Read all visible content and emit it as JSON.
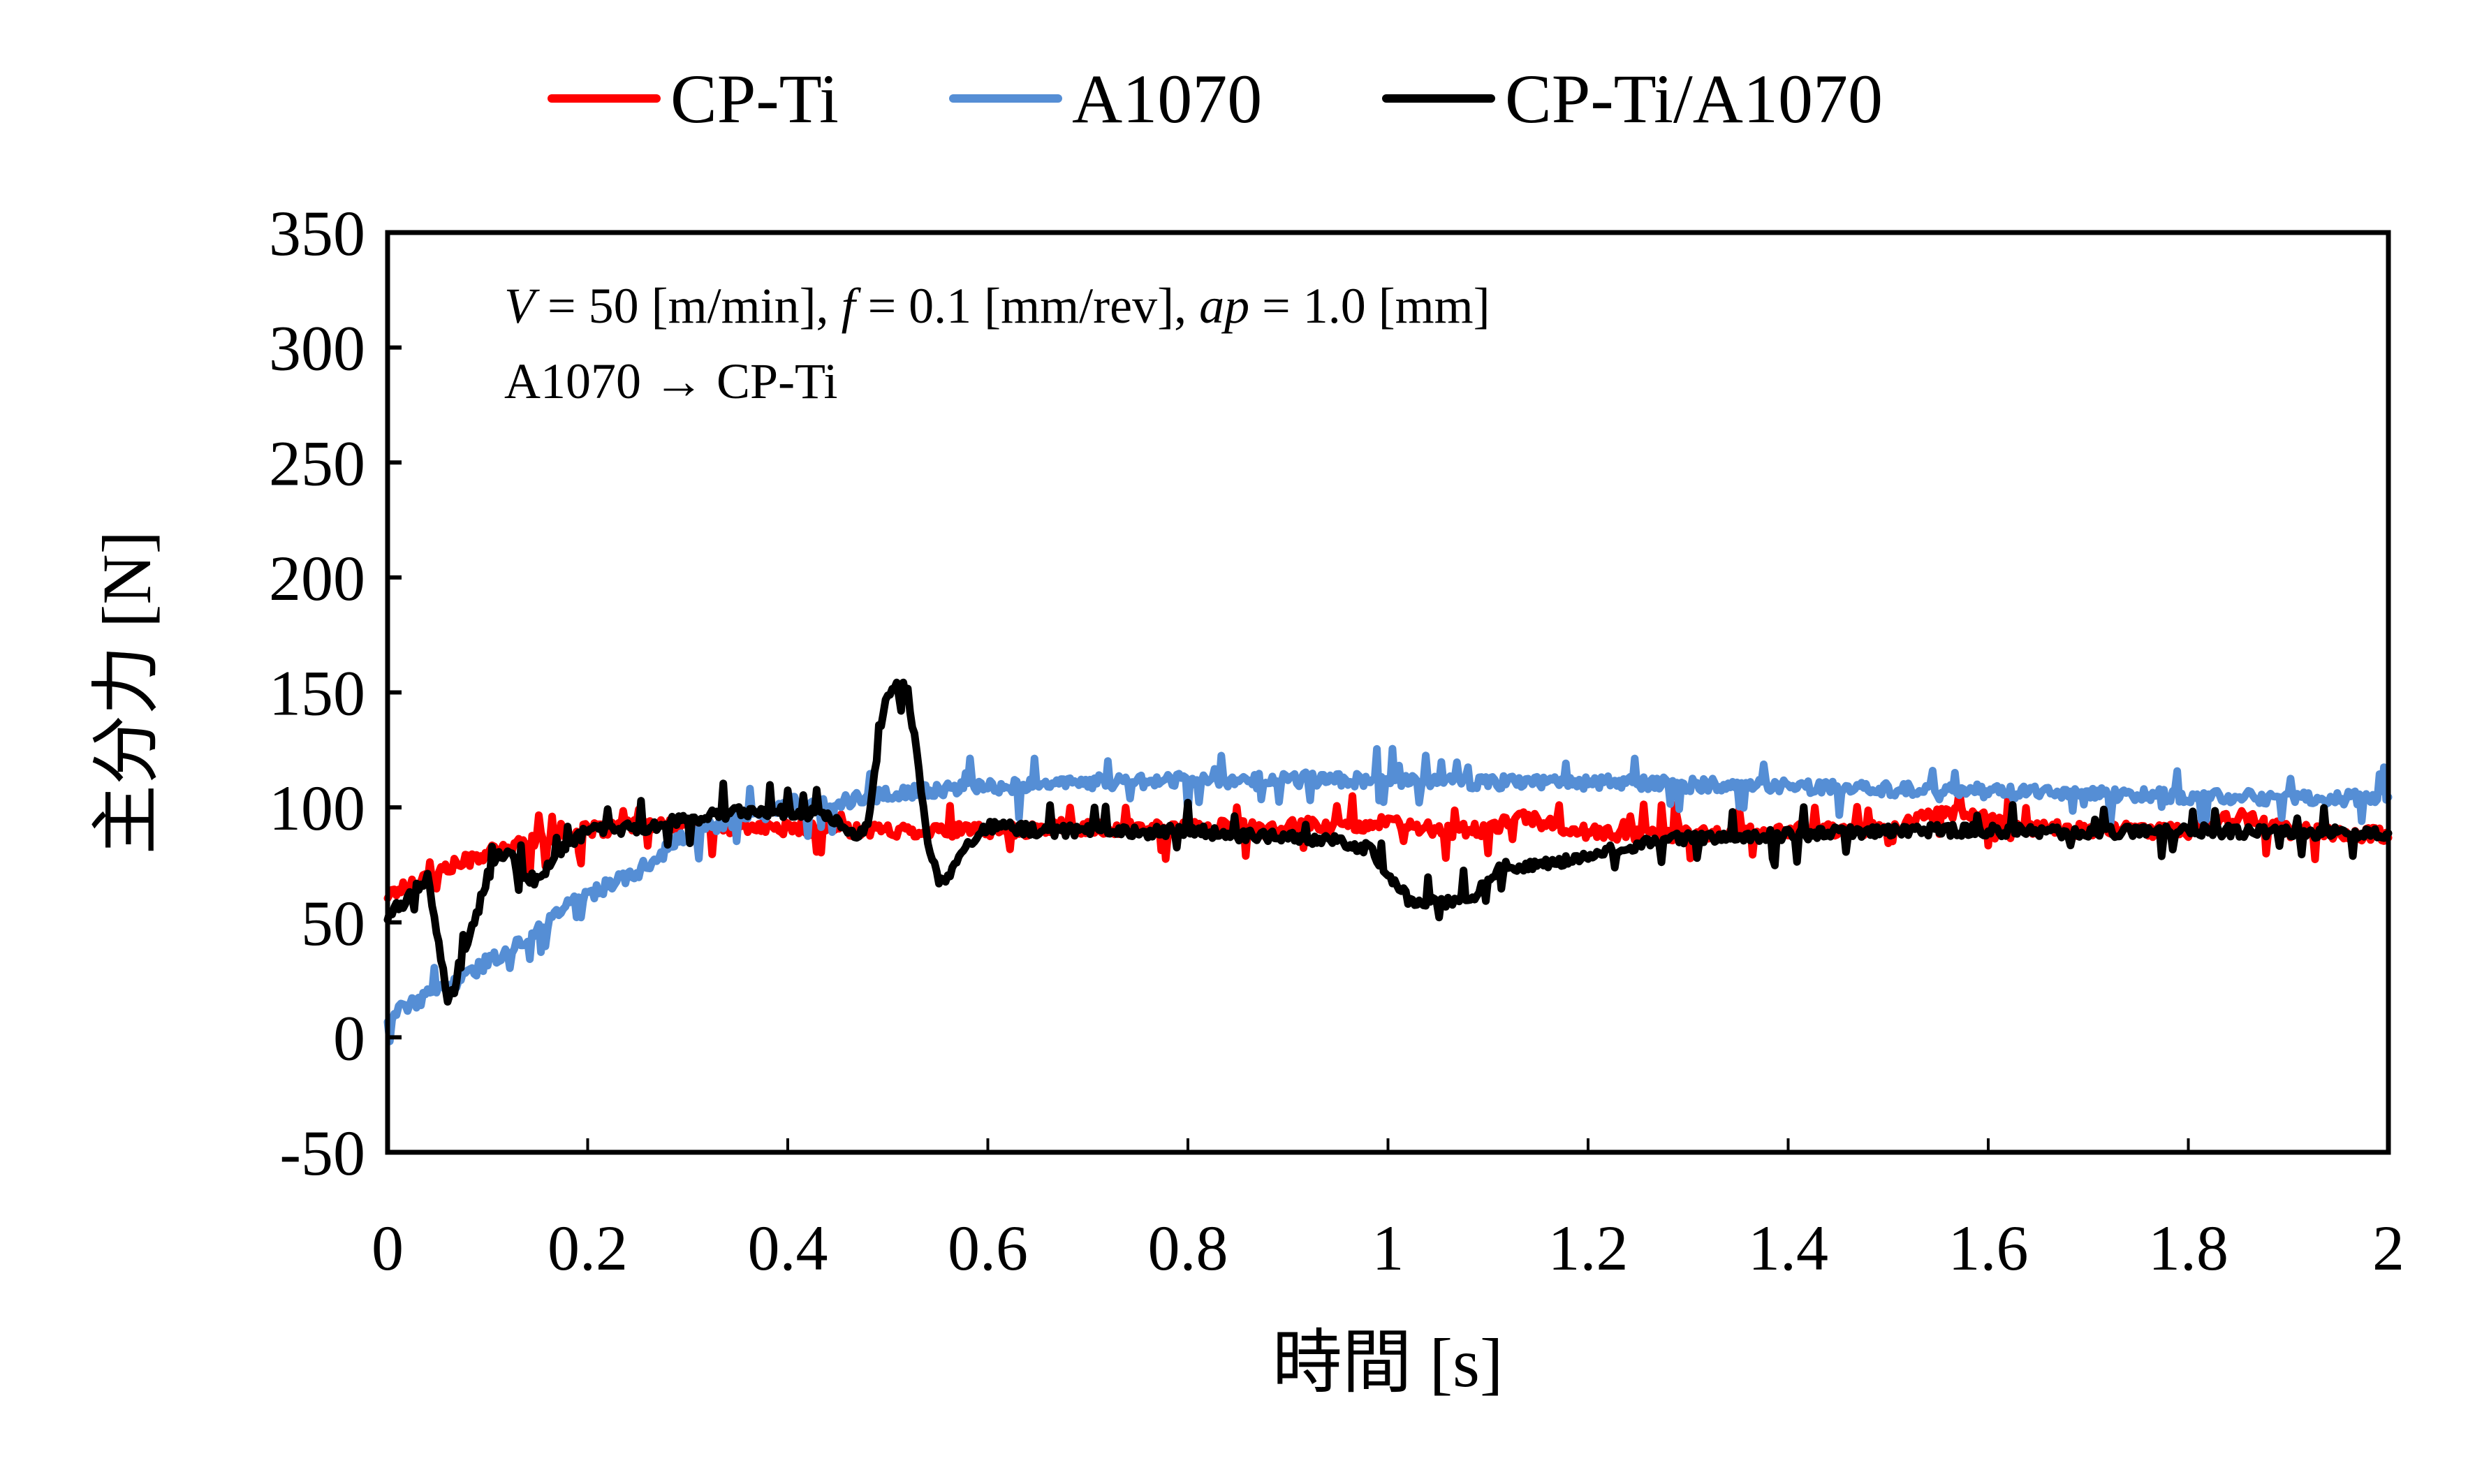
{
  "chart_data": {
    "type": "line",
    "title": "",
    "xlabel": "時間 [s]",
    "ylabel": "主分力 [N]",
    "xlim": [
      0,
      2
    ],
    "ylim": [
      -50,
      350
    ],
    "x_ticks": [
      0,
      0.2,
      0.4,
      0.6,
      0.8,
      1,
      1.2,
      1.4,
      1.6,
      1.8,
      2
    ],
    "x_tick_labels": [
      "0",
      "0.2",
      "0.4",
      "0.6",
      "0.8",
      "1",
      "1.2",
      "1.4",
      "1.6",
      "1.8",
      "2"
    ],
    "y_ticks": [
      -50,
      0,
      50,
      100,
      150,
      200,
      250,
      300,
      350
    ],
    "y_tick_labels": [
      "-50",
      "0",
      "50",
      "100",
      "150",
      "200",
      "250",
      "300",
      "350"
    ],
    "grid": false,
    "legend_position": "top-center",
    "annotations": [
      {
        "text_parts": [
          {
            "t": "V",
            "italic": true
          },
          {
            "t": " = 50 [m/min], ",
            "italic": false
          },
          {
            "t": "f",
            "italic": true
          },
          {
            "t": " = 0.1 [mm/rev], ",
            "italic": false
          },
          {
            "t": "ap",
            "italic": true
          },
          {
            "t": " = 1.0 [mm]",
            "italic": false
          }
        ],
        "position": "top-left"
      },
      {
        "text": "A1070 → CP-Ti",
        "position": "top-left"
      }
    ],
    "series": [
      {
        "name": "CP-Ti",
        "color": "#ff0000",
        "x": [
          0,
          0.02,
          0.05,
          0.08,
          0.1,
          0.15,
          0.2,
          0.25,
          0.3,
          0.4,
          0.5,
          0.6,
          0.7,
          0.8,
          0.9,
          1.0,
          1.05,
          1.1,
          1.13,
          1.17,
          1.2,
          1.3,
          1.4,
          1.5,
          1.55,
          1.58,
          1.62,
          1.7,
          1.8,
          1.85,
          1.9,
          2.0
        ],
        "y": [
          62,
          66,
          72,
          77,
          80,
          86,
          90,
          92,
          92,
          91,
          90,
          90,
          91,
          91,
          92,
          93,
          90,
          90,
          96,
          92,
          89,
          88,
          90,
          91,
          98,
          98,
          92,
          90,
          90,
          96,
          90,
          88
        ]
      },
      {
        "name": "A1070",
        "color": "#558ed5",
        "x": [
          0,
          0.02,
          0.05,
          0.08,
          0.1,
          0.13,
          0.15,
          0.18,
          0.2,
          0.22,
          0.25,
          0.28,
          0.3,
          0.35,
          0.4,
          0.45,
          0.5,
          0.6,
          0.7,
          0.8,
          0.9,
          1.0,
          1.1,
          1.2,
          1.3,
          1.4,
          1.5,
          1.6,
          1.7,
          1.8,
          1.9,
          2.0
        ],
        "y": [
          8,
          14,
          20,
          27,
          33,
          40,
          46,
          58,
          62,
          66,
          72,
          82,
          88,
          95,
          100,
          102,
          106,
          109,
          111,
          112,
          112,
          112,
          111,
          111,
          110,
          109,
          108,
          107,
          106,
          105,
          104,
          104
        ]
      },
      {
        "name": "CP-Ti/A1070",
        "color": "#000000",
        "x": [
          0,
          0.01,
          0.02,
          0.03,
          0.04,
          0.05,
          0.06,
          0.07,
          0.08,
          0.09,
          0.1,
          0.11,
          0.12,
          0.13,
          0.15,
          0.17,
          0.2,
          0.25,
          0.3,
          0.35,
          0.4,
          0.44,
          0.47,
          0.48,
          0.49,
          0.5,
          0.51,
          0.52,
          0.53,
          0.54,
          0.55,
          0.56,
          0.58,
          0.6,
          0.65,
          0.7,
          0.75,
          0.8,
          0.85,
          0.9,
          0.95,
          0.98,
          1.0,
          1.02,
          1.04,
          1.07,
          1.09,
          1.1,
          1.12,
          1.15,
          1.2,
          1.25,
          1.3,
          1.4,
          1.5,
          1.6,
          1.7,
          1.8,
          1.9,
          2.0
        ],
        "y": [
          52,
          57,
          60,
          66,
          70,
          45,
          14,
          25,
          40,
          55,
          70,
          78,
          82,
          72,
          68,
          80,
          90,
          91,
          95,
          98,
          98,
          97,
          88,
          92,
          125,
          150,
          155,
          150,
          120,
          85,
          68,
          70,
          85,
          92,
          90,
          90,
          89,
          90,
          88,
          87,
          85,
          82,
          72,
          60,
          58,
          60,
          62,
          70,
          75,
          74,
          80,
          84,
          87,
          88,
          90,
          90,
          89,
          90,
          89,
          89
        ]
      }
    ]
  }
}
